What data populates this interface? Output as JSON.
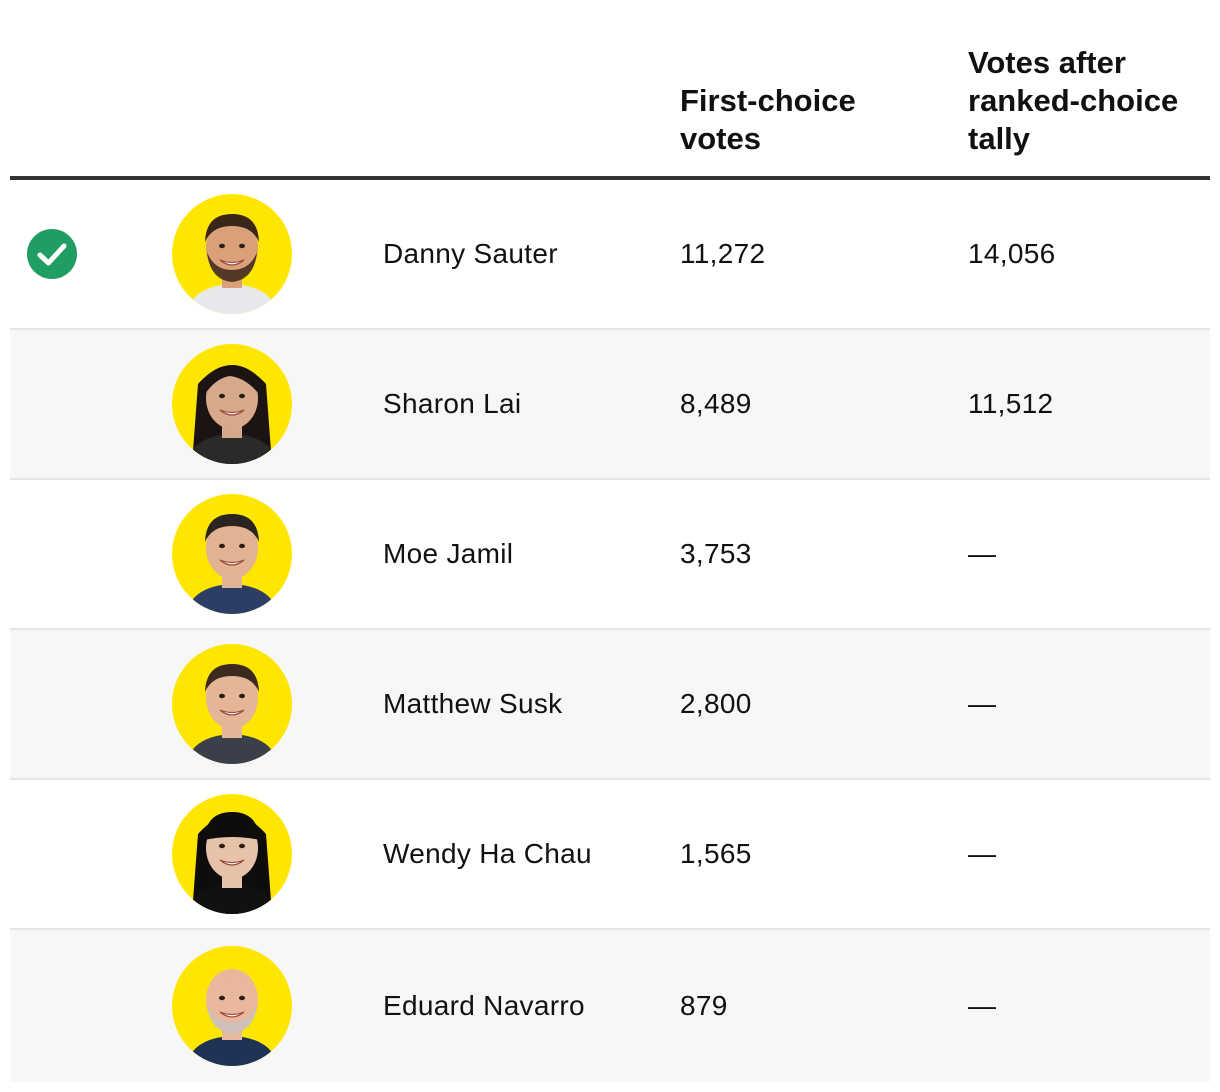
{
  "table": {
    "headers": {
      "first_choice": "First-choice\nvotes",
      "ranked_choice": "Votes after\nranked-choice\ntally"
    },
    "colors": {
      "avatar_background": "#ffe600",
      "winner_check": "#1f9d63",
      "header_rule": "#333333",
      "shaded_row": "#f7f7f7"
    },
    "rows": [
      {
        "winner": true,
        "icon": "check-circle-icon",
        "name": "Danny Sauter",
        "first_choice": "11,272",
        "ranked_choice": "14,056",
        "avatar": {
          "skin": "#d9a07a",
          "hair": "#3a2618",
          "shirt": "#e8e8ec",
          "hair_style": "short-beard"
        }
      },
      {
        "winner": false,
        "name": "Sharon Lai",
        "first_choice": "8,489",
        "ranked_choice": "11,512",
        "avatar": {
          "skin": "#d6a98a",
          "hair": "#1c1412",
          "shirt": "#2a2a2a",
          "hair_style": "long"
        }
      },
      {
        "winner": false,
        "name": "Moe Jamil",
        "first_choice": "3,753",
        "ranked_choice": "—",
        "avatar": {
          "skin": "#e2b393",
          "hair": "#2b2420",
          "shirt": "#2c3e66",
          "hair_style": "short"
        }
      },
      {
        "winner": false,
        "name": "Matthew Susk",
        "first_choice": "2,800",
        "ranked_choice": "—",
        "avatar": {
          "skin": "#e4b597",
          "hair": "#3b2a1e",
          "shirt": "#3a3f4a",
          "hair_style": "short"
        }
      },
      {
        "winner": false,
        "name": "Wendy Ha Chau",
        "first_choice": "1,565",
        "ranked_choice": "—",
        "avatar": {
          "skin": "#e6c2a8",
          "hair": "#0f0c0c",
          "shirt": "#111111",
          "hair_style": "bangs-long"
        }
      },
      {
        "winner": false,
        "name": "Eduard Navarro",
        "first_choice": "879",
        "ranked_choice": "—",
        "avatar": {
          "skin": "#e9b79c",
          "hair": "#c9c2bc",
          "shirt": "#1e3355",
          "hair_style": "bald-beard"
        }
      }
    ]
  }
}
